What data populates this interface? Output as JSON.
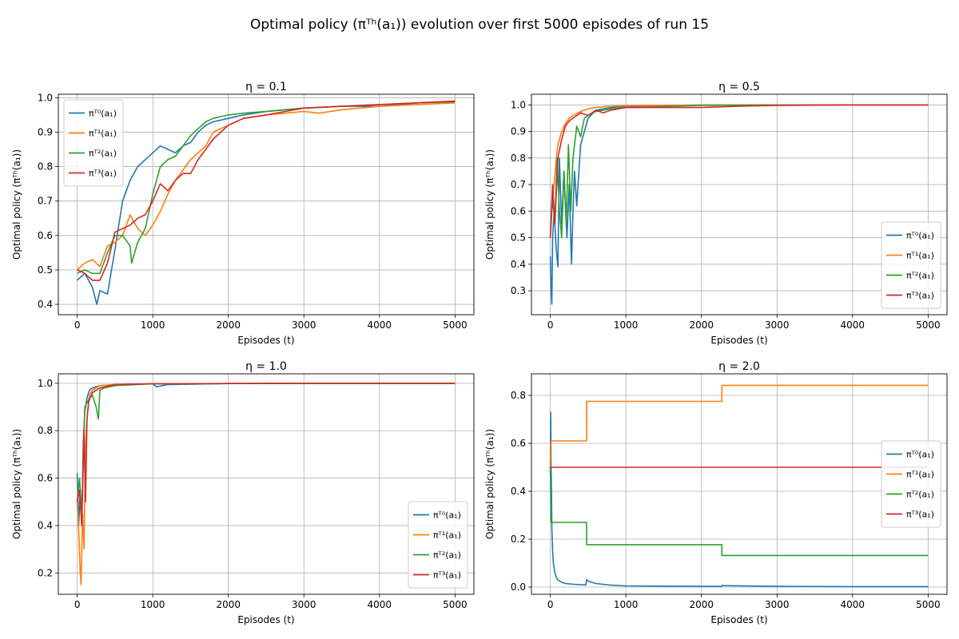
{
  "figure": {
    "title": "Optimal policy (πᵀʰ(a₁)) evolution over first 5000 episodes of run 15"
  },
  "chart_data": [
    {
      "type": "line",
      "title": "η = 0.1",
      "xlabel": "Episodes (t)",
      "ylabel": "Optimal policy (πᵀʰ(a₁))",
      "xlim": [
        -250,
        5250
      ],
      "ylim": [
        0.37,
        1.01
      ],
      "xticks": [
        0,
        1000,
        2000,
        3000,
        4000,
        5000
      ],
      "yticks": [
        0.4,
        0.5,
        0.6,
        0.7,
        0.8,
        0.9,
        1.0
      ],
      "grid": true,
      "legend": "upper left",
      "series": [
        {
          "name": "πᵀ⁰(a₁)",
          "color": "#1f77b4",
          "x": [
            0,
            100,
            200,
            260,
            300,
            400,
            500,
            600,
            700,
            800,
            900,
            1000,
            1100,
            1200,
            1300,
            1400,
            1500,
            1600,
            1700,
            1800,
            2000,
            2200,
            2500,
            3000,
            3500,
            4000,
            4500,
            5000
          ],
          "y": [
            0.47,
            0.49,
            0.45,
            0.4,
            0.44,
            0.43,
            0.56,
            0.7,
            0.76,
            0.8,
            0.82,
            0.84,
            0.86,
            0.85,
            0.84,
            0.86,
            0.87,
            0.9,
            0.92,
            0.93,
            0.94,
            0.95,
            0.96,
            0.97,
            0.975,
            0.975,
            0.985,
            0.99
          ]
        },
        {
          "name": "πᵀ¹(a₁)",
          "color": "#ff7f0e",
          "x": [
            0,
            100,
            200,
            300,
            400,
            500,
            600,
            700,
            800,
            900,
            1000,
            1100,
            1200,
            1300,
            1400,
            1500,
            1600,
            1700,
            1800,
            2000,
            2200,
            2500,
            3000,
            3200,
            3500,
            4000,
            4500,
            5000
          ],
          "y": [
            0.5,
            0.52,
            0.53,
            0.51,
            0.57,
            0.58,
            0.6,
            0.66,
            0.62,
            0.6,
            0.63,
            0.67,
            0.72,
            0.76,
            0.79,
            0.82,
            0.84,
            0.86,
            0.9,
            0.92,
            0.94,
            0.95,
            0.96,
            0.955,
            0.965,
            0.975,
            0.98,
            0.985
          ]
        },
        {
          "name": "πᵀ²(a₁)",
          "color": "#2ca02c",
          "x": [
            0,
            100,
            200,
            300,
            400,
            500,
            600,
            700,
            720,
            800,
            900,
            1000,
            1100,
            1200,
            1300,
            1400,
            1500,
            1600,
            1700,
            1800,
            1900,
            2000,
            2200,
            2500,
            3000,
            3500,
            4000,
            4500,
            5000
          ],
          "y": [
            0.49,
            0.5,
            0.49,
            0.49,
            0.55,
            0.6,
            0.6,
            0.57,
            0.52,
            0.58,
            0.62,
            0.72,
            0.8,
            0.82,
            0.83,
            0.86,
            0.89,
            0.91,
            0.93,
            0.94,
            0.945,
            0.95,
            0.955,
            0.96,
            0.97,
            0.975,
            0.98,
            0.985,
            0.988
          ]
        },
        {
          "name": "πᵀ³(a₁)",
          "color": "#d62728",
          "x": [
            0,
            100,
            200,
            300,
            400,
            500,
            600,
            700,
            800,
            900,
            1000,
            1100,
            1200,
            1300,
            1400,
            1500,
            1600,
            1700,
            1800,
            2000,
            2200,
            2500,
            3000,
            3500,
            4000,
            4500,
            5000
          ],
          "y": [
            0.5,
            0.49,
            0.47,
            0.47,
            0.52,
            0.61,
            0.62,
            0.63,
            0.65,
            0.66,
            0.7,
            0.75,
            0.73,
            0.76,
            0.78,
            0.78,
            0.82,
            0.85,
            0.88,
            0.92,
            0.94,
            0.95,
            0.97,
            0.975,
            0.98,
            0.985,
            0.99
          ]
        }
      ]
    },
    {
      "type": "line",
      "title": "η = 0.5",
      "xlabel": "Episodes (t)",
      "ylabel": "Optimal policy (πᵀʰ(a₁))",
      "xlim": [
        -250,
        5250
      ],
      "ylim": [
        0.21,
        1.04
      ],
      "xticks": [
        0,
        1000,
        2000,
        3000,
        4000,
        5000
      ],
      "yticks": [
        0.3,
        0.4,
        0.5,
        0.6,
        0.7,
        0.8,
        0.9,
        1.0
      ],
      "grid": true,
      "legend": "lower right",
      "series": [
        {
          "name": "πᵀ⁰(a₁)",
          "color": "#1f77b4",
          "x": [
            0,
            10,
            20,
            30,
            50,
            80,
            100,
            120,
            150,
            180,
            200,
            220,
            250,
            280,
            300,
            320,
            350,
            400,
            450,
            500,
            600,
            800,
            1000,
            1500,
            2000,
            3000,
            4000,
            5000
          ],
          "y": [
            0.43,
            0.3,
            0.25,
            0.5,
            0.6,
            0.45,
            0.39,
            0.8,
            0.55,
            0.75,
            0.62,
            0.5,
            0.7,
            0.4,
            0.6,
            0.75,
            0.62,
            0.85,
            0.9,
            0.95,
            0.98,
            0.99,
            0.995,
            0.998,
            0.999,
            1.0,
            1.0,
            1.0
          ]
        },
        {
          "name": "πᵀ¹(a₁)",
          "color": "#ff7f0e",
          "x": [
            0,
            20,
            50,
            80,
            100,
            150,
            200,
            250,
            300,
            400,
            500,
            600,
            800,
            1000,
            2000,
            3000,
            4000,
            5000
          ],
          "y": [
            0.5,
            0.62,
            0.7,
            0.8,
            0.85,
            0.9,
            0.93,
            0.95,
            0.96,
            0.975,
            0.985,
            0.99,
            0.995,
            0.997,
            0.999,
            1.0,
            1.0,
            1.0
          ]
        },
        {
          "name": "πᵀ²(a₁)",
          "color": "#2ca02c",
          "x": [
            0,
            30,
            60,
            90,
            120,
            150,
            180,
            210,
            240,
            270,
            300,
            350,
            400,
            450,
            500,
            600,
            800,
            1000,
            2000,
            3000,
            4000,
            5000
          ],
          "y": [
            0.5,
            0.65,
            0.55,
            0.8,
            0.6,
            0.5,
            0.75,
            0.55,
            0.85,
            0.6,
            0.8,
            0.92,
            0.88,
            0.95,
            0.96,
            0.975,
            0.985,
            0.99,
            0.998,
            0.999,
            1.0,
            1.0
          ]
        },
        {
          "name": "πᵀ³(a₁)",
          "color": "#d62728",
          "x": [
            0,
            30,
            60,
            100,
            150,
            200,
            250,
            300,
            400,
            500,
            600,
            700,
            800,
            1000,
            1300,
            2000,
            2500,
            3000,
            4000,
            5000
          ],
          "y": [
            0.5,
            0.7,
            0.55,
            0.8,
            0.87,
            0.92,
            0.94,
            0.95,
            0.97,
            0.96,
            0.98,
            0.97,
            0.98,
            0.99,
            0.99,
            0.99,
            0.995,
            0.998,
            1.0,
            1.0
          ]
        }
      ]
    },
    {
      "type": "line",
      "title": "η = 1.0",
      "xlabel": "Episodes (t)",
      "ylabel": "Optimal policy (πᵀʰ(a₁))",
      "xlim": [
        -250,
        5250
      ],
      "ylim": [
        0.11,
        1.04
      ],
      "xticks": [
        0,
        1000,
        2000,
        3000,
        4000,
        5000
      ],
      "yticks": [
        0.2,
        0.4,
        0.6,
        0.8,
        1.0
      ],
      "grid": true,
      "legend": "lower right",
      "series": [
        {
          "name": "πᵀ⁰(a₁)",
          "color": "#1f77b4",
          "x": [
            0,
            20,
            40,
            60,
            80,
            100,
            130,
            160,
            200,
            300,
            500,
            1000,
            1050,
            1200,
            2000,
            3000,
            4000,
            5000
          ],
          "y": [
            0.62,
            0.4,
            0.55,
            0.4,
            0.75,
            0.88,
            0.94,
            0.97,
            0.98,
            0.99,
            0.995,
            0.998,
            0.985,
            0.995,
            0.999,
            1.0,
            1.0,
            1.0
          ]
        },
        {
          "name": "πᵀ¹(a₁)",
          "color": "#ff7f0e",
          "x": [
            0,
            20,
            40,
            50,
            70,
            90,
            110,
            130,
            160,
            200,
            300,
            500,
            1000,
            2000,
            3000,
            4000,
            5000
          ],
          "y": [
            0.5,
            0.38,
            0.2,
            0.15,
            0.45,
            0.3,
            0.75,
            0.85,
            0.95,
            0.97,
            0.99,
            0.995,
            0.998,
            0.999,
            1.0,
            1.0,
            1.0
          ]
        },
        {
          "name": "πᵀ²(a₁)",
          "color": "#2ca02c",
          "x": [
            0,
            30,
            60,
            100,
            150,
            200,
            250,
            280,
            300,
            350,
            500,
            1000,
            2000,
            3000,
            4000,
            5000
          ],
          "y": [
            0.5,
            0.6,
            0.45,
            0.9,
            0.93,
            0.95,
            0.9,
            0.85,
            0.97,
            0.98,
            0.99,
            0.998,
            0.999,
            1.0,
            1.0,
            1.0
          ]
        },
        {
          "name": "πᵀ³(a₁)",
          "color": "#d62728",
          "x": [
            0,
            30,
            60,
            90,
            110,
            130,
            150,
            200,
            300,
            500,
            1000,
            2000,
            3000,
            4000,
            5000
          ],
          "y": [
            0.5,
            0.55,
            0.4,
            0.8,
            0.5,
            0.85,
            0.92,
            0.96,
            0.98,
            0.995,
            0.998,
            0.999,
            1.0,
            1.0,
            1.0
          ]
        }
      ]
    },
    {
      "type": "line",
      "title": "η = 2.0",
      "xlabel": "Episodes (t)",
      "ylabel": "Optimal policy (πᵀʰ(a₁))",
      "xlim": [
        -250,
        5250
      ],
      "ylim": [
        -0.03,
        0.89
      ],
      "xticks": [
        0,
        1000,
        2000,
        3000,
        4000,
        5000
      ],
      "yticks": [
        0.0,
        0.2,
        0.4,
        0.6,
        0.8
      ],
      "grid": true,
      "legend": "center right",
      "series": [
        {
          "name": "πᵀ⁰(a₁)",
          "color": "#1f77b4",
          "x": [
            0,
            5,
            10,
            15,
            20,
            30,
            40,
            60,
            80,
            100,
            150,
            200,
            300,
            400,
            470,
            480,
            500,
            600,
            800,
            1000,
            1500,
            2000,
            2270,
            2280,
            2300,
            3000,
            4000,
            5000
          ],
          "y": [
            0.5,
            0.73,
            0.5,
            0.4,
            0.25,
            0.15,
            0.1,
            0.06,
            0.04,
            0.03,
            0.02,
            0.015,
            0.012,
            0.01,
            0.009,
            0.032,
            0.025,
            0.015,
            0.008,
            0.005,
            0.004,
            0.003,
            0.003,
            0.008,
            0.006,
            0.003,
            0.002,
            0.002
          ]
        },
        {
          "name": "πᵀ¹(a₁)",
          "color": "#ff7f0e",
          "x": [
            0,
            10,
            20,
            480,
            481,
            2270,
            2271,
            5000
          ],
          "y": [
            0.5,
            0.61,
            0.61,
            0.61,
            0.775,
            0.775,
            0.842,
            0.842
          ]
        },
        {
          "name": "πᵀ²(a₁)",
          "color": "#2ca02c",
          "x": [
            0,
            10,
            20,
            480,
            481,
            2270,
            2271,
            5000
          ],
          "y": [
            0.5,
            0.27,
            0.27,
            0.27,
            0.177,
            0.177,
            0.132,
            0.132
          ]
        },
        {
          "name": "πᵀ³(a₁)",
          "color": "#d62728",
          "x": [
            0,
            20,
            5000
          ],
          "y": [
            0.5,
            0.5,
            0.5
          ]
        }
      ]
    }
  ]
}
